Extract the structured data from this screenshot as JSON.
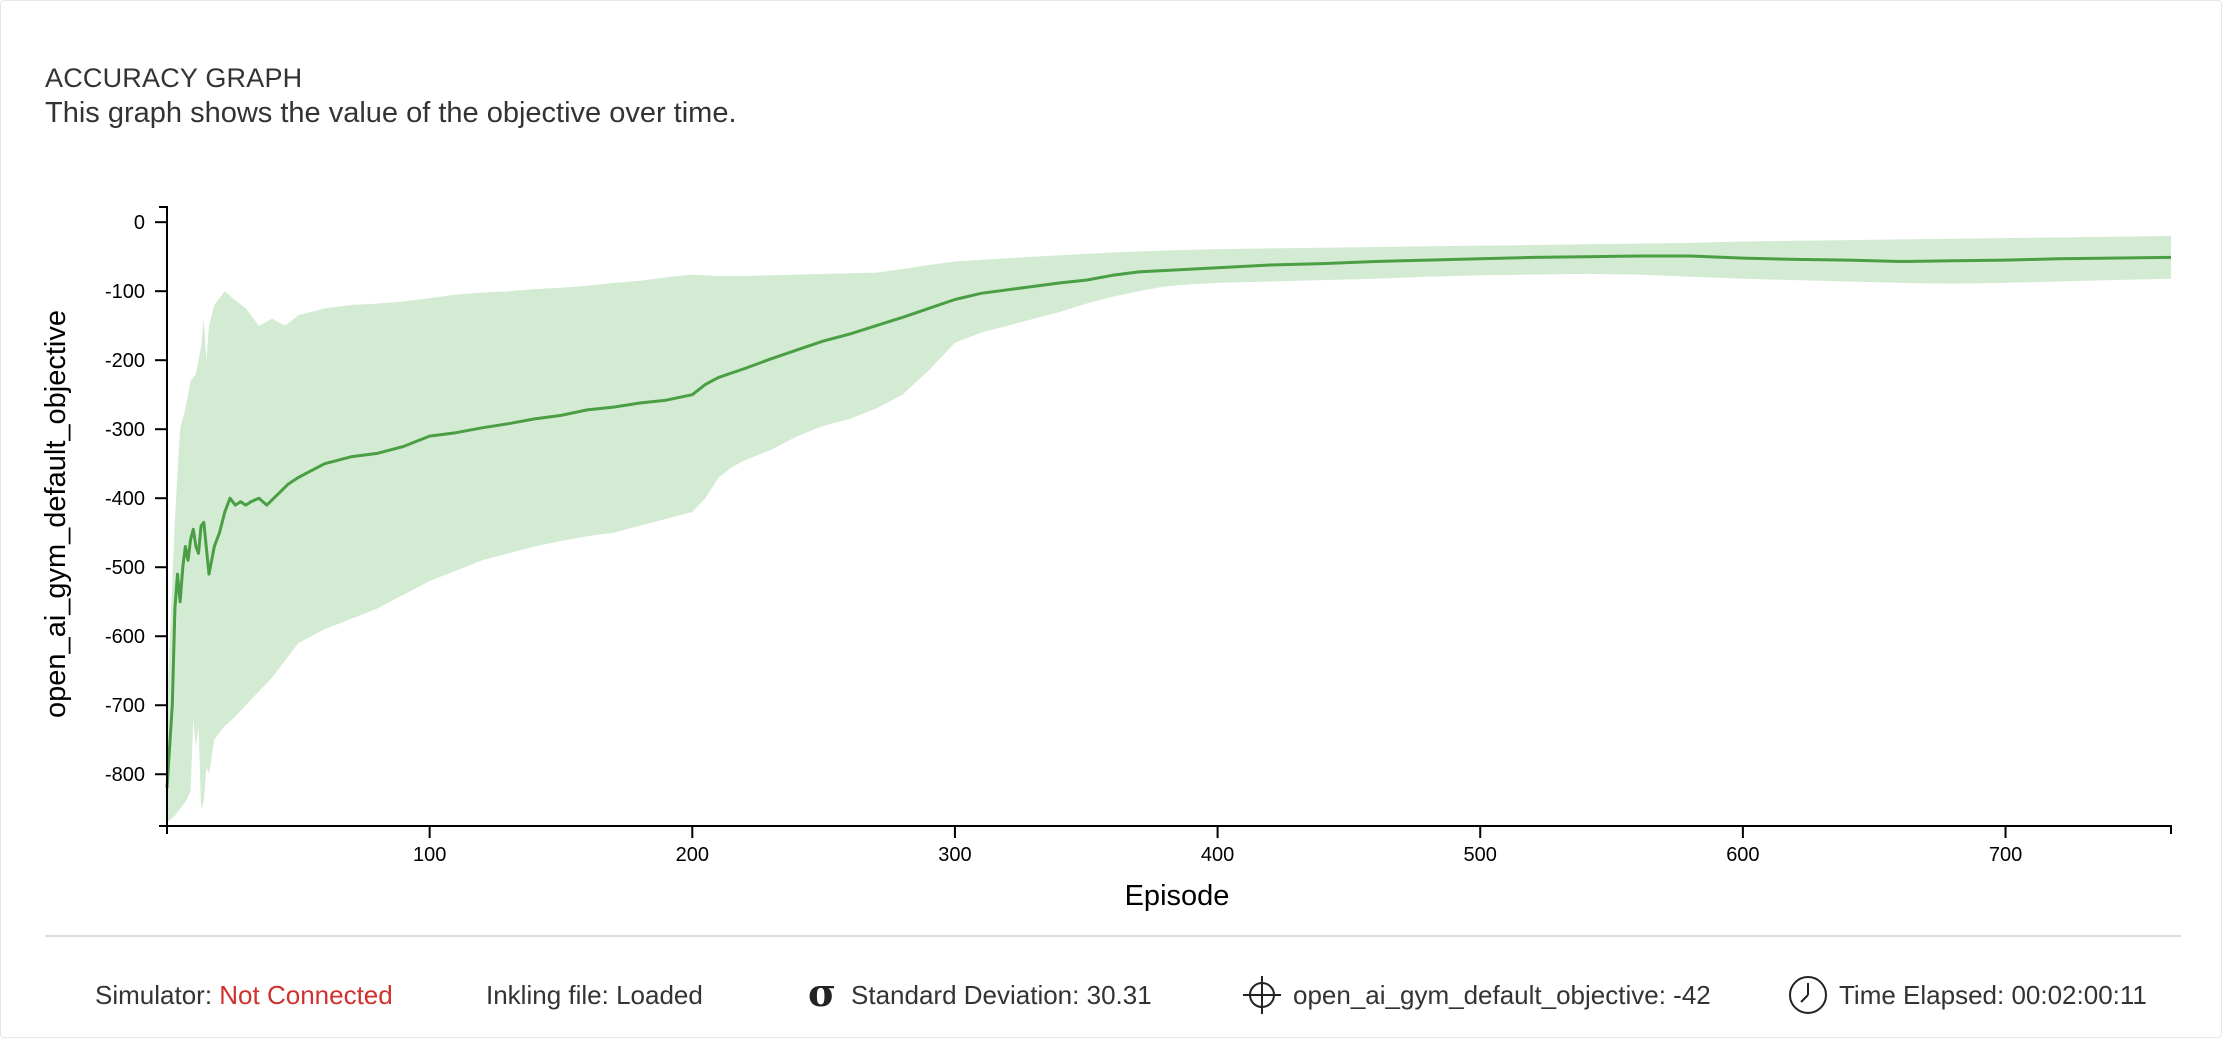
{
  "header": {
    "title": "ACCURACY GRAPH",
    "subtitle": "This graph shows the value of the objective over time."
  },
  "status_bar": {
    "simulator_label": "Simulator:",
    "simulator_value": "Not Connected",
    "simulator_value_color": "#d0312d",
    "inkling_label": "Inkling file:",
    "inkling_value": "Loaded",
    "sigma_glyph": "σ",
    "std_label": "Standard Deviation:",
    "std_value": "30.31",
    "objective_label": "open_ai_gym_default_objective:",
    "objective_value": "-42",
    "time_label": "Time Elapsed:",
    "time_value": "00:02:00:11",
    "icons": [
      "sigma-icon",
      "crosshair-icon",
      "clock-icon"
    ]
  },
  "chart_data": {
    "type": "line",
    "title": "",
    "xlabel": "Episode",
    "ylabel": "open_ai_gym_default_objective",
    "xlim": [
      0,
      763
    ],
    "ylim": [
      -875,
      22
    ],
    "xticks": [
      100,
      200,
      300,
      400,
      500,
      600,
      700
    ],
    "yticks": [
      0,
      -100,
      -200,
      -300,
      -400,
      -500,
      -600,
      -700,
      -800
    ],
    "line_color": "#4a9e44",
    "band_color": "#d4ebd3",
    "grid": false,
    "legend": "none",
    "series": [
      {
        "values": [
          [
            0,
            -820
          ],
          [
            2,
            -700
          ],
          [
            3,
            -560
          ],
          [
            4,
            -510
          ],
          [
            5,
            -550
          ],
          [
            6,
            -500
          ],
          [
            7,
            -470
          ],
          [
            8,
            -490
          ],
          [
            9,
            -460
          ],
          [
            10,
            -445
          ],
          [
            11,
            -470
          ],
          [
            12,
            -480
          ],
          [
            13,
            -440
          ],
          [
            14,
            -435
          ],
          [
            16,
            -510
          ],
          [
            18,
            -470
          ],
          [
            20,
            -450
          ],
          [
            22,
            -420
          ],
          [
            24,
            -400
          ],
          [
            26,
            -410
          ],
          [
            28,
            -405
          ],
          [
            30,
            -410
          ],
          [
            32,
            -405
          ],
          [
            35,
            -400
          ],
          [
            38,
            -410
          ],
          [
            42,
            -395
          ],
          [
            46,
            -380
          ],
          [
            50,
            -370
          ],
          [
            55,
            -360
          ],
          [
            60,
            -350
          ],
          [
            65,
            -345
          ],
          [
            70,
            -340
          ],
          [
            80,
            -335
          ],
          [
            90,
            -325
          ],
          [
            100,
            -310
          ],
          [
            110,
            -305
          ],
          [
            120,
            -298
          ],
          [
            130,
            -292
          ],
          [
            140,
            -285
          ],
          [
            150,
            -280
          ],
          [
            160,
            -272
          ],
          [
            170,
            -268
          ],
          [
            180,
            -262
          ],
          [
            190,
            -258
          ],
          [
            200,
            -250
          ],
          [
            205,
            -235
          ],
          [
            210,
            -225
          ],
          [
            220,
            -212
          ],
          [
            230,
            -198
          ],
          [
            240,
            -185
          ],
          [
            250,
            -172
          ],
          [
            260,
            -162
          ],
          [
            270,
            -150
          ],
          [
            280,
            -138
          ],
          [
            290,
            -125
          ],
          [
            300,
            -112
          ],
          [
            310,
            -103
          ],
          [
            320,
            -98
          ],
          [
            330,
            -93
          ],
          [
            340,
            -88
          ],
          [
            350,
            -84
          ],
          [
            360,
            -77
          ],
          [
            370,
            -72
          ],
          [
            380,
            -70
          ],
          [
            390,
            -68
          ],
          [
            400,
            -66
          ],
          [
            420,
            -62
          ],
          [
            440,
            -60
          ],
          [
            460,
            -57
          ],
          [
            480,
            -55
          ],
          [
            500,
            -53
          ],
          [
            520,
            -51
          ],
          [
            540,
            -50
          ],
          [
            560,
            -49
          ],
          [
            580,
            -49
          ],
          [
            600,
            -52
          ],
          [
            620,
            -54
          ],
          [
            640,
            -55
          ],
          [
            660,
            -57
          ],
          [
            680,
            -56
          ],
          [
            700,
            -55
          ],
          [
            720,
            -53
          ],
          [
            740,
            -52
          ],
          [
            763,
            -51
          ]
        ],
        "upper": [
          [
            0,
            -700
          ],
          [
            3,
            -430
          ],
          [
            5,
            -300
          ],
          [
            7,
            -270
          ],
          [
            9,
            -230
          ],
          [
            11,
            -220
          ],
          [
            13,
            -180
          ],
          [
            14,
            -140
          ],
          [
            15,
            -200
          ],
          [
            16,
            -150
          ],
          [
            18,
            -120
          ],
          [
            20,
            -110
          ],
          [
            22,
            -100
          ],
          [
            25,
            -110
          ],
          [
            30,
            -125
          ],
          [
            35,
            -150
          ],
          [
            40,
            -140
          ],
          [
            45,
            -150
          ],
          [
            50,
            -135
          ],
          [
            60,
            -125
          ],
          [
            70,
            -120
          ],
          [
            80,
            -118
          ],
          [
            90,
            -115
          ],
          [
            100,
            -110
          ],
          [
            110,
            -105
          ],
          [
            120,
            -102
          ],
          [
            130,
            -100
          ],
          [
            140,
            -97
          ],
          [
            150,
            -95
          ],
          [
            160,
            -92
          ],
          [
            170,
            -88
          ],
          [
            180,
            -85
          ],
          [
            190,
            -80
          ],
          [
            200,
            -76
          ],
          [
            210,
            -78
          ],
          [
            220,
            -78
          ],
          [
            230,
            -77
          ],
          [
            240,
            -76
          ],
          [
            250,
            -75
          ],
          [
            260,
            -74
          ],
          [
            270,
            -73
          ],
          [
            280,
            -68
          ],
          [
            290,
            -62
          ],
          [
            300,
            -57
          ],
          [
            320,
            -52
          ],
          [
            340,
            -48
          ],
          [
            360,
            -44
          ],
          [
            380,
            -41
          ],
          [
            400,
            -39
          ],
          [
            420,
            -38
          ],
          [
            440,
            -37
          ],
          [
            460,
            -36
          ],
          [
            480,
            -35
          ],
          [
            500,
            -34
          ],
          [
            520,
            -33
          ],
          [
            540,
            -32
          ],
          [
            560,
            -31
          ],
          [
            580,
            -30
          ],
          [
            600,
            -28
          ],
          [
            620,
            -27
          ],
          [
            640,
            -26
          ],
          [
            660,
            -25
          ],
          [
            680,
            -24
          ],
          [
            700,
            -23
          ],
          [
            720,
            -22
          ],
          [
            740,
            -21
          ],
          [
            763,
            -20
          ]
        ],
        "lower": [
          [
            0,
            -870
          ],
          [
            3,
            -860
          ],
          [
            5,
            -850
          ],
          [
            7,
            -840
          ],
          [
            9,
            -825
          ],
          [
            10,
            -720
          ],
          [
            11,
            -760
          ],
          [
            12,
            -730
          ],
          [
            13,
            -850
          ],
          [
            14,
            -840
          ],
          [
            15,
            -790
          ],
          [
            16,
            -800
          ],
          [
            18,
            -750
          ],
          [
            20,
            -740
          ],
          [
            22,
            -730
          ],
          [
            25,
            -720
          ],
          [
            30,
            -700
          ],
          [
            35,
            -680
          ],
          [
            40,
            -660
          ],
          [
            45,
            -635
          ],
          [
            50,
            -610
          ],
          [
            60,
            -590
          ],
          [
            70,
            -575
          ],
          [
            80,
            -560
          ],
          [
            90,
            -540
          ],
          [
            100,
            -520
          ],
          [
            110,
            -505
          ],
          [
            120,
            -490
          ],
          [
            130,
            -480
          ],
          [
            140,
            -470
          ],
          [
            150,
            -462
          ],
          [
            160,
            -455
          ],
          [
            170,
            -450
          ],
          [
            180,
            -440
          ],
          [
            190,
            -430
          ],
          [
            200,
            -420
          ],
          [
            205,
            -400
          ],
          [
            210,
            -370
          ],
          [
            215,
            -355
          ],
          [
            220,
            -345
          ],
          [
            230,
            -330
          ],
          [
            240,
            -310
          ],
          [
            250,
            -295
          ],
          [
            260,
            -285
          ],
          [
            270,
            -270
          ],
          [
            280,
            -250
          ],
          [
            290,
            -215
          ],
          [
            300,
            -175
          ],
          [
            310,
            -160
          ],
          [
            320,
            -150
          ],
          [
            330,
            -140
          ],
          [
            340,
            -130
          ],
          [
            350,
            -118
          ],
          [
            360,
            -108
          ],
          [
            370,
            -100
          ],
          [
            380,
            -93
          ],
          [
            390,
            -90
          ],
          [
            400,
            -88
          ],
          [
            420,
            -86
          ],
          [
            440,
            -84
          ],
          [
            460,
            -82
          ],
          [
            480,
            -79
          ],
          [
            500,
            -77
          ],
          [
            520,
            -76
          ],
          [
            540,
            -75
          ],
          [
            560,
            -76
          ],
          [
            580,
            -79
          ],
          [
            600,
            -82
          ],
          [
            620,
            -84
          ],
          [
            640,
            -86
          ],
          [
            660,
            -88
          ],
          [
            680,
            -89
          ],
          [
            700,
            -88
          ],
          [
            720,
            -86
          ],
          [
            740,
            -84
          ],
          [
            763,
            -82
          ]
        ]
      }
    ]
  }
}
